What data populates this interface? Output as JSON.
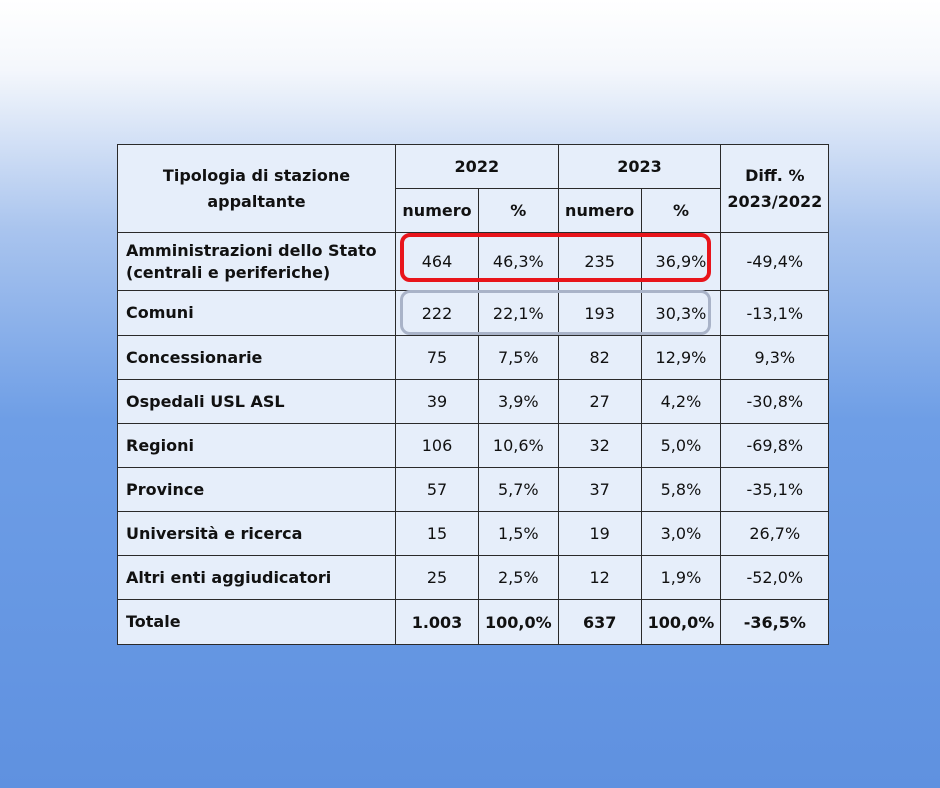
{
  "table": {
    "header": {
      "category": "Tipologia di stazione appaltante",
      "years": [
        "2022",
        "2023"
      ],
      "subcolumns": [
        "numero",
        "%",
        "numero",
        "%"
      ],
      "diff": "Diff. % 2023/2022"
    },
    "rows": [
      [
        "Amministrazioni dello Stato (centrali e periferiche)",
        "464",
        "46,3%",
        "235",
        "36,9%",
        "-49,4%"
      ],
      [
        "Comuni",
        "222",
        "22,1%",
        "193",
        "30,3%",
        "-13,1%"
      ],
      [
        "Concessionarie",
        "75",
        "7,5%",
        "82",
        "12,9%",
        "9,3%"
      ],
      [
        "Ospedali USL ASL",
        "39",
        "3,9%",
        "27",
        "4,2%",
        "-30,8%"
      ],
      [
        "Regioni",
        "106",
        "10,6%",
        "32",
        "5,0%",
        "-69,8%"
      ],
      [
        "Province",
        "57",
        "5,7%",
        "37",
        "5,8%",
        "-35,1%"
      ],
      [
        "Università e ricerca",
        "15",
        "1,5%",
        "19",
        "3,0%",
        "26,7%"
      ],
      [
        "Altri enti aggiudicatori",
        "25",
        "2,5%",
        "12",
        "1,9%",
        "-52,0%"
      ],
      [
        "Totale",
        "1.003",
        "100,0%",
        "637",
        "100,0%",
        "-36,5%"
      ]
    ]
  }
}
